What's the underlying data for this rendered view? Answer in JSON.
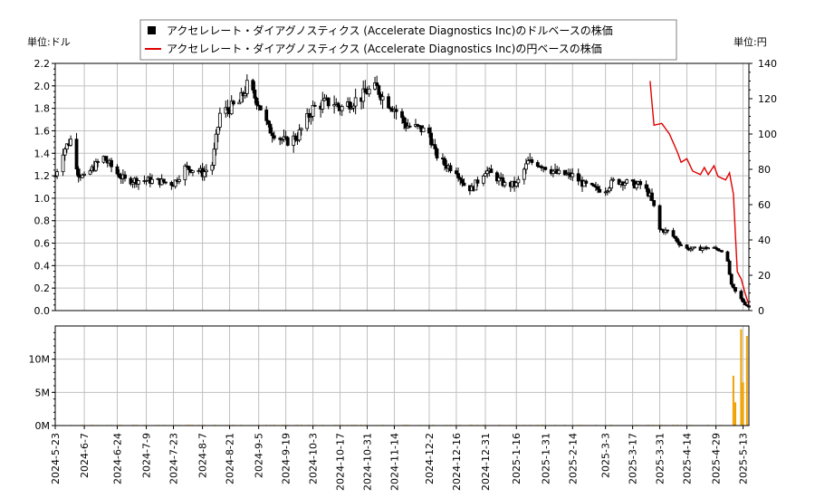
{
  "chart_data": {
    "type": "candlestick+line+bar",
    "legend": [
      {
        "label": "アクセレレート・ダイアグノスティクス (Accelerate Diagnostics Inc)のドルベースの株価",
        "color": "#000000",
        "marker": "square"
      },
      {
        "label": "アクセレレート・ダイアグノスティクス (Accelerate Diagnostics Inc)の円ベースの株価",
        "color": "#e00000",
        "marker": "line"
      }
    ],
    "left_unit_label": "単位:ドル",
    "right_unit_label": "単位:円",
    "y_left": {
      "min": 0,
      "max": 2.2,
      "ticks": [
        "0.0",
        "0.2",
        "0.4",
        "0.6",
        "0.8",
        "1.0",
        "1.2",
        "1.4",
        "1.6",
        "1.8",
        "2.0",
        "2.2"
      ]
    },
    "y_right": {
      "min": 0,
      "max": 140,
      "ticks": [
        "0",
        "20",
        "40",
        "60",
        "80",
        "100",
        "120",
        "140"
      ]
    },
    "volume_axis": {
      "min": 0,
      "max": 15000000,
      "ticks": [
        {
          "v": 0,
          "label": "0M"
        },
        {
          "v": 5000000,
          "label": "5M"
        },
        {
          "v": 10000000,
          "label": "10M"
        }
      ]
    },
    "x_start": "2024-05-23",
    "x_end": "2025-05-16",
    "x_tick_labels": [
      "2024-5-23",
      "2024-6-7",
      "2024-6-24",
      "2024-7-9",
      "2024-7-23",
      "2024-8-7",
      "2024-8-21",
      "2024-9-5",
      "2024-9-19",
      "2024-10-3",
      "2024-10-17",
      "2024-10-31",
      "2024-11-14",
      "2024-12-2",
      "2024-12-16",
      "2024-12-31",
      "2025-1-16",
      "2025-1-31",
      "2025-2-14",
      "2025-3-3",
      "2025-3-17",
      "2025-3-31",
      "2025-4-14",
      "2025-4-29",
      "2025-5-13"
    ],
    "usd_close_anchors": [
      [
        "2024-05-23",
        1.2
      ],
      [
        "2024-05-27",
        1.42
      ],
      [
        "2024-05-31",
        1.52
      ],
      [
        "2024-06-04",
        1.22
      ],
      [
        "2024-06-07",
        1.18
      ],
      [
        "2024-06-12",
        1.28
      ],
      [
        "2024-06-17",
        1.36
      ],
      [
        "2024-06-21",
        1.28
      ],
      [
        "2024-06-24",
        1.22
      ],
      [
        "2024-06-28",
        1.16
      ],
      [
        "2024-07-09",
        1.16
      ],
      [
        "2024-07-16",
        1.15
      ],
      [
        "2024-07-23",
        1.13
      ],
      [
        "2024-07-29",
        1.27
      ],
      [
        "2024-08-05",
        1.25
      ],
      [
        "2024-08-07",
        1.22
      ],
      [
        "2024-08-12",
        1.3
      ],
      [
        "2024-08-16",
        1.75
      ],
      [
        "2024-08-21",
        1.8
      ],
      [
        "2024-08-26",
        1.85
      ],
      [
        "2024-08-30",
        2.0
      ],
      [
        "2024-09-05",
        1.85
      ],
      [
        "2024-09-10",
        1.62
      ],
      [
        "2024-09-15",
        1.55
      ],
      [
        "2024-09-19",
        1.5
      ],
      [
        "2024-09-25",
        1.55
      ],
      [
        "2024-10-03",
        1.8
      ],
      [
        "2024-10-09",
        1.85
      ],
      [
        "2024-10-14",
        1.85
      ],
      [
        "2024-10-17",
        1.8
      ],
      [
        "2024-10-22",
        1.85
      ],
      [
        "2024-10-28",
        1.9
      ],
      [
        "2024-10-31",
        1.95
      ],
      [
        "2024-11-05",
        1.98
      ],
      [
        "2024-11-08",
        1.9
      ],
      [
        "2024-11-14",
        1.8
      ],
      [
        "2024-11-20",
        1.65
      ],
      [
        "2024-11-27",
        1.62
      ],
      [
        "2024-12-02",
        1.58
      ],
      [
        "2024-12-05",
        1.4
      ],
      [
        "2024-12-10",
        1.3
      ],
      [
        "2024-12-16",
        1.25
      ],
      [
        "2024-12-20",
        1.12
      ],
      [
        "2024-12-24",
        1.08
      ],
      [
        "2024-12-31",
        1.25
      ],
      [
        "2025-01-06",
        1.18
      ],
      [
        "2025-01-10",
        1.12
      ],
      [
        "2025-01-16",
        1.12
      ],
      [
        "2025-01-22",
        1.32
      ],
      [
        "2025-01-26",
        1.32
      ],
      [
        "2025-01-31",
        1.28
      ],
      [
        "2025-02-06",
        1.22
      ],
      [
        "2025-02-14",
        1.2
      ],
      [
        "2025-02-20",
        1.12
      ],
      [
        "2025-02-26",
        1.08
      ],
      [
        "2025-03-03",
        1.08
      ],
      [
        "2025-03-07",
        1.15
      ],
      [
        "2025-03-12",
        1.15
      ],
      [
        "2025-03-17",
        1.12
      ],
      [
        "2025-03-22",
        1.12
      ],
      [
        "2025-03-26",
        1.02
      ],
      [
        "2025-03-28",
        0.92
      ],
      [
        "2025-03-31",
        0.72
      ],
      [
        "2025-04-05",
        0.7
      ],
      [
        "2025-04-10",
        0.6
      ],
      [
        "2025-04-14",
        0.55
      ],
      [
        "2025-04-20",
        0.55
      ],
      [
        "2025-04-26",
        0.56
      ],
      [
        "2025-04-29",
        0.55
      ],
      [
        "2025-05-04",
        0.53
      ],
      [
        "2025-05-07",
        0.22
      ],
      [
        "2025-05-10",
        0.14
      ],
      [
        "2025-05-13",
        0.08
      ],
      [
        "2025-05-16",
        0.03
      ]
    ],
    "jpy_price_anchors": [
      [
        "2025-03-26",
        130
      ],
      [
        "2025-03-28",
        105
      ],
      [
        "2025-04-01",
        106
      ],
      [
        "2025-04-05",
        100
      ],
      [
        "2025-04-09",
        90
      ],
      [
        "2025-04-11",
        84
      ],
      [
        "2025-04-14",
        86
      ],
      [
        "2025-04-17",
        79
      ],
      [
        "2025-04-21",
        77
      ],
      [
        "2025-04-23",
        81
      ],
      [
        "2025-04-25",
        77
      ],
      [
        "2025-04-28",
        82
      ],
      [
        "2025-04-30",
        76
      ],
      [
        "2025-05-04",
        74
      ],
      [
        "2025-05-06",
        78
      ],
      [
        "2025-05-08",
        66
      ],
      [
        "2025-05-10",
        22
      ],
      [
        "2025-05-12",
        18
      ],
      [
        "2025-05-14",
        10
      ],
      [
        "2025-05-16",
        3
      ]
    ],
    "volume_anchors": [
      [
        "2024-05-23",
        200000
      ],
      [
        "2024-07-30",
        100000
      ],
      [
        "2024-09-05",
        80000
      ],
      [
        "2024-12-05",
        120000
      ],
      [
        "2024-12-31",
        150000
      ],
      [
        "2025-03-31",
        100000
      ],
      [
        "2025-05-08",
        7500000
      ],
      [
        "2025-05-09",
        3500000
      ],
      [
        "2025-05-12",
        14500000
      ],
      [
        "2025-05-13",
        6500000
      ],
      [
        "2025-05-15",
        13500000
      ]
    ],
    "colors": {
      "candle": "#000000",
      "jpy_line": "#e00000",
      "volume": "#f0a000",
      "grid": "#c0c0c0"
    }
  }
}
